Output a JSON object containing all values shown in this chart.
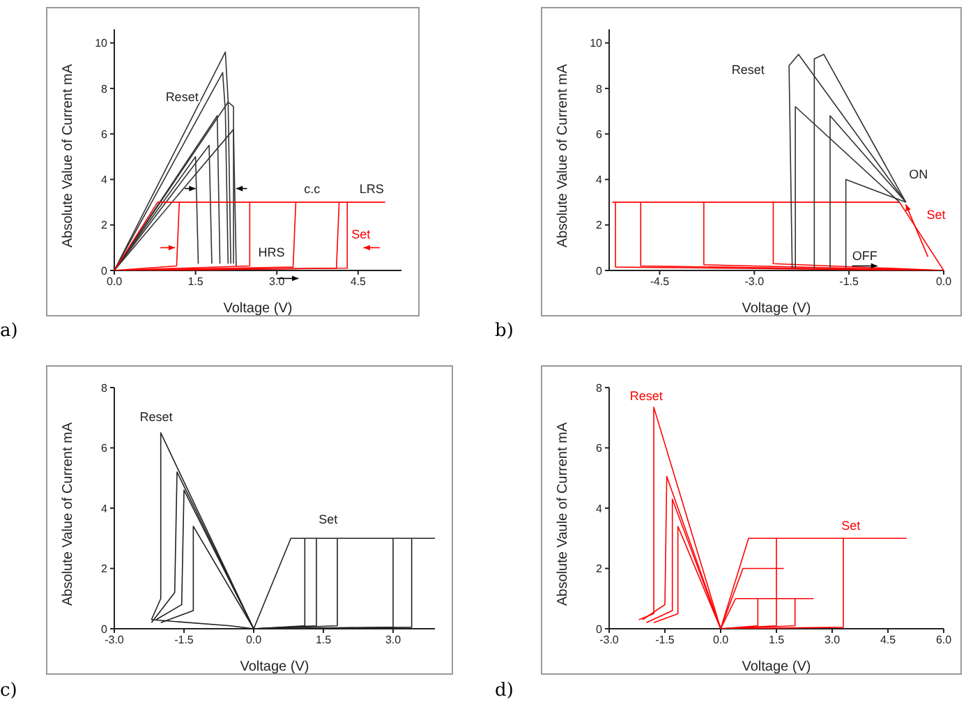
{
  "chart_data": [
    {
      "type": "line",
      "xlabel": "Voltage (V)",
      "ylabel": "Absolute Value of Current mA",
      "xlim": [
        0,
        5.3
      ],
      "ylim": [
        0,
        10.6
      ],
      "xticks": [
        {
          "value": 0,
          "label": "0.0"
        },
        1.5,
        {
          "value": 3,
          "label": "3.0"
        },
        4.5
      ],
      "yticks": [
        0,
        2,
        4,
        6,
        8,
        10
      ],
      "grid": false,
      "legend": false,
      "marker": "none",
      "annotations": [
        "a)",
        "Reset",
        "c.c",
        "LRS",
        "Set",
        "HRS"
      ],
      "series": [
        {
          "color": "#333333",
          "x": [
            0,
            2.05,
            2.1,
            2.15
          ],
          "values": [
            0,
            9.6,
            7.5,
            0.3
          ]
        },
        {
          "color": "#333333",
          "x": [
            0,
            2.0,
            2.05,
            2.1
          ],
          "values": [
            0,
            8.7,
            7.0,
            0.3
          ]
        },
        {
          "color": "#333333",
          "x": [
            0,
            2.1,
            2.2,
            2.2
          ],
          "values": [
            0,
            7.4,
            7.2,
            0.3
          ]
        },
        {
          "color": "#333333",
          "x": [
            0,
            1.9,
            1.95
          ],
          "values": [
            0,
            6.8,
            0.3
          ]
        },
        {
          "color": "#333333",
          "x": [
            0,
            1.75,
            1.8
          ],
          "values": [
            0,
            5.5,
            0.3
          ]
        },
        {
          "color": "#333333",
          "x": [
            0,
            1.5,
            1.55
          ],
          "values": [
            0,
            5.0,
            0.3
          ]
        },
        {
          "color": "#333333",
          "x": [
            0,
            2.2,
            2.25
          ],
          "values": [
            0,
            6.2,
            0.2
          ]
        },
        {
          "color": "#ff0000",
          "x": [
            0,
            0.8,
            5.0
          ],
          "values": [
            0,
            3,
            3
          ]
        },
        {
          "color": "#ff0000",
          "x": [
            0,
            1.15,
            1.2
          ],
          "values": [
            0,
            0.2,
            3
          ]
        },
        {
          "color": "#ff0000",
          "x": [
            0,
            2.5,
            2.5
          ],
          "values": [
            0,
            0.2,
            3
          ]
        },
        {
          "color": "#ff0000",
          "x": [
            0,
            3.3,
            3.35
          ],
          "values": [
            0,
            0.15,
            3
          ]
        },
        {
          "color": "#ff0000",
          "x": [
            0,
            4.1,
            4.15
          ],
          "values": [
            0,
            0.1,
            3
          ]
        },
        {
          "color": "#ff0000",
          "x": [
            0,
            4.3,
            4.3
          ],
          "values": [
            0,
            0.1,
            3
          ]
        }
      ]
    },
    {
      "type": "line",
      "xlabel": "Voltage (V)",
      "ylabel": "Absolute Value of Current mA",
      "xlim": [
        -5.3,
        0
      ],
      "ylim": [
        0,
        10.6
      ],
      "xticks": [
        -4.5,
        {
          "value": -3,
          "label": "-3.0"
        },
        -1.5,
        {
          "value": 0,
          "label": "0.0"
        }
      ],
      "yticks": [
        0,
        2,
        4,
        6,
        8,
        10
      ],
      "grid": false,
      "legend": false,
      "marker": "none",
      "annotations": [
        "b)",
        "Reset",
        "ON",
        "Set",
        "OFF"
      ],
      "series": [
        {
          "color": "#ff0000",
          "x": [
            -5.25,
            -0.7,
            0
          ],
          "values": [
            3,
            3,
            0
          ]
        },
        {
          "color": "#ff0000",
          "x": [
            -5.2,
            -5.2,
            0
          ],
          "values": [
            3,
            0.15,
            0
          ]
        },
        {
          "color": "#ff0000",
          "x": [
            -4.8,
            -4.8,
            0
          ],
          "values": [
            3,
            0.2,
            0
          ]
        },
        {
          "color": "#ff0000",
          "x": [
            -3.8,
            -3.8,
            0
          ],
          "values": [
            3,
            0.25,
            0
          ]
        },
        {
          "color": "#ff0000",
          "x": [
            -2.7,
            -2.7,
            0
          ],
          "values": [
            3,
            0.3,
            0
          ]
        },
        {
          "color": "#333333",
          "x": [
            -2.05,
            -2.05,
            -1.9,
            -0.6
          ],
          "values": [
            0.1,
            9.3,
            9.5,
            3
          ]
        },
        {
          "color": "#333333",
          "x": [
            -2.4,
            -2.45,
            -2.3,
            -0.6
          ],
          "values": [
            0.1,
            9.0,
            9.5,
            3
          ]
        },
        {
          "color": "#333333",
          "x": [
            -1.8,
            -1.8,
            -0.6
          ],
          "values": [
            0.1,
            6.8,
            3
          ]
        },
        {
          "color": "#333333",
          "x": [
            -2.35,
            -2.35,
            -0.7
          ],
          "values": [
            0.1,
            7.2,
            3
          ]
        },
        {
          "color": "#333333",
          "x": [
            -1.55,
            -1.55,
            -0.6
          ],
          "values": [
            0.1,
            4.0,
            3
          ]
        }
      ]
    },
    {
      "type": "line",
      "xlabel": "Voltage (V)",
      "ylabel": "Absolute Value of Current mA",
      "xlim": [
        -3,
        3.9
      ],
      "ylim": [
        0,
        8
      ],
      "xticks": [
        {
          "value": -3,
          "label": "-3.0"
        },
        -1.5,
        {
          "value": 0,
          "label": "0.0"
        },
        1.5,
        {
          "value": 3,
          "label": "3.0"
        }
      ],
      "yticks": [
        0,
        2,
        4,
        6,
        8
      ],
      "grid": false,
      "legend": false,
      "marker": "none",
      "annotations": [
        "c)",
        "Reset",
        "Set"
      ],
      "series": [
        {
          "color": "#222222",
          "x": [
            -2.2,
            -2.0,
            -2.0,
            0
          ],
          "values": [
            0.3,
            1.0,
            6.5,
            0
          ]
        },
        {
          "color": "#222222",
          "x": [
            -2.2,
            -1.7,
            -1.65,
            0
          ],
          "values": [
            0.2,
            1.2,
            5.2,
            0
          ]
        },
        {
          "color": "#222222",
          "x": [
            -2.1,
            -1.55,
            -1.5,
            0
          ],
          "values": [
            0.3,
            0.8,
            4.6,
            0
          ]
        },
        {
          "color": "#222222",
          "x": [
            -2.0,
            -1.3,
            -1.3,
            0
          ],
          "values": [
            0.2,
            0.6,
            3.4,
            0
          ]
        },
        {
          "color": "#222222",
          "x": [
            -2.2,
            -0.5,
            0,
            0.8,
            3.9
          ],
          "values": [
            0.3,
            0.1,
            0,
            3,
            3
          ]
        },
        {
          "color": "#222222",
          "x": [
            0,
            1.1,
            1.1
          ],
          "values": [
            0,
            0.1,
            3
          ]
        },
        {
          "color": "#222222",
          "x": [
            0,
            1.35,
            1.35
          ],
          "values": [
            0,
            0.1,
            3
          ]
        },
        {
          "color": "#222222",
          "x": [
            0,
            1.8,
            1.8
          ],
          "values": [
            0,
            0.1,
            3
          ]
        },
        {
          "color": "#222222",
          "x": [
            0,
            3.0,
            3.0
          ],
          "values": [
            0,
            0.05,
            3
          ]
        },
        {
          "color": "#222222",
          "x": [
            0,
            3.4,
            3.4
          ],
          "values": [
            0,
            0.05,
            3
          ]
        }
      ]
    },
    {
      "type": "line",
      "xlabel": "Voltage (V)",
      "ylabel": "Absolute Vaule of Current mA",
      "xlim": [
        -3,
        6
      ],
      "ylim": [
        0,
        8
      ],
      "xticks": [
        {
          "value": -3,
          "label": "-3.0"
        },
        -1.5,
        {
          "value": 0,
          "label": "0.0"
        },
        1.5,
        {
          "value": 3,
          "label": "3.0"
        },
        4.5,
        {
          "value": 6,
          "label": "6.0"
        }
      ],
      "yticks": [
        0,
        2,
        4,
        6,
        8
      ],
      "grid": false,
      "legend": false,
      "marker": "none",
      "annotations": [
        "d)",
        "Reset",
        "Set"
      ],
      "series": [
        {
          "color": "#ff0000",
          "x": [
            -2.2,
            -1.8,
            -1.8,
            0
          ],
          "values": [
            0.3,
            0.5,
            7.35,
            0
          ]
        },
        {
          "color": "#ff0000",
          "x": [
            -2.1,
            -1.5,
            -1.45,
            0
          ],
          "values": [
            0.3,
            0.8,
            5.05,
            0
          ]
        },
        {
          "color": "#ff0000",
          "x": [
            -2.0,
            -1.3,
            -1.3,
            0
          ],
          "values": [
            0.2,
            0.6,
            4.3,
            0
          ]
        },
        {
          "color": "#ff0000",
          "x": [
            -1.8,
            -1.15,
            -1.15,
            0
          ],
          "values": [
            0.2,
            0.5,
            3.4,
            0
          ]
        },
        {
          "color": "#ff0000",
          "x": [
            0,
            0.75,
            5.0
          ],
          "values": [
            0,
            3,
            3
          ]
        },
        {
          "color": "#ff0000",
          "x": [
            0,
            1.5,
            1.5
          ],
          "values": [
            0,
            0.1,
            3
          ]
        },
        {
          "color": "#ff0000",
          "x": [
            0,
            3.3,
            3.3
          ],
          "values": [
            0,
            0.05,
            3
          ]
        },
        {
          "color": "#ff0000",
          "x": [
            0,
            0.6,
            1.7
          ],
          "values": [
            0,
            2,
            2
          ]
        },
        {
          "color": "#ff0000",
          "x": [
            0,
            0.4,
            2.5
          ],
          "values": [
            0,
            1,
            1
          ]
        },
        {
          "color": "#ff0000",
          "x": [
            0,
            1.0,
            1.0
          ],
          "values": [
            0,
            0.1,
            1
          ]
        },
        {
          "color": "#ff0000",
          "x": [
            0,
            2.0,
            2.0
          ],
          "values": [
            0,
            0.1,
            1
          ]
        }
      ]
    }
  ]
}
